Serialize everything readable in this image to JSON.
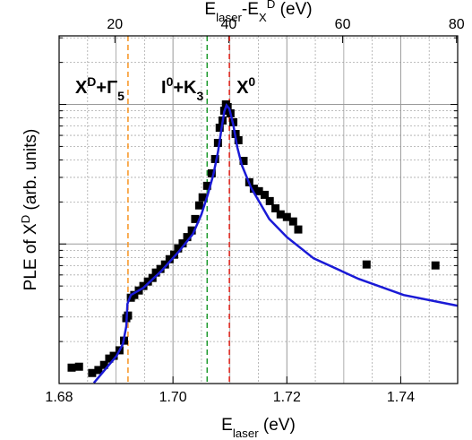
{
  "chart_data": {
    "type": "scatter",
    "xlabel": [
      {
        "base": "E",
        "sub": "laser"
      },
      {
        "base": " (eV)"
      }
    ],
    "x2label": [
      {
        "base": "E",
        "sub": "laser"
      },
      {
        "base": "-E",
        "sub": "X"
      },
      {
        "sup": "D"
      },
      {
        "base": " (eV)"
      }
    ],
    "ylabel": [
      {
        "base": "PLE of X",
        "sup": "D"
      },
      {
        "base": " (arb. units)"
      }
    ],
    "xlim": [
      1.68,
      1.75
    ],
    "xticks": [
      1.68,
      1.7,
      1.72,
      1.74
    ],
    "x2lim": [
      10.2,
      80.2
    ],
    "x2ticks": [
      20,
      40,
      60,
      80
    ],
    "ylim": [
      0.01,
      3.1
    ],
    "ygrid": [
      0.01,
      0.1,
      1
    ],
    "log_y": true,
    "grid": true,
    "series": [
      {
        "kind": "scatter",
        "color": "#000000",
        "x": [
          1.6822,
          1.6835,
          1.6858,
          1.6869,
          1.6879,
          1.6888,
          1.6896,
          1.6906,
          1.6914,
          1.6918,
          1.6921,
          1.6926,
          1.6932,
          1.694,
          1.6948,
          1.6956,
          1.6964,
          1.697,
          1.6978,
          1.6986,
          1.6994,
          1.7002,
          1.7009,
          1.7017,
          1.7025,
          1.7033,
          1.7039,
          1.7046,
          1.7052,
          1.706,
          1.7068,
          1.7074,
          1.7079,
          1.7082,
          1.7087,
          1.709,
          1.7093,
          1.7096,
          1.7101,
          1.7106,
          1.711,
          1.7115,
          1.7124,
          1.7134,
          1.7142,
          1.7151,
          1.7161,
          1.717,
          1.718,
          1.7189,
          1.72,
          1.7211,
          1.722,
          1.734,
          1.7461
        ],
        "values": [
          0.013,
          0.0132,
          0.0119,
          0.0125,
          0.0136,
          0.0151,
          0.0158,
          0.0173,
          0.0203,
          0.0294,
          0.0307,
          0.0412,
          0.0431,
          0.0464,
          0.05,
          0.0538,
          0.0571,
          0.0624,
          0.0662,
          0.0713,
          0.0778,
          0.0838,
          0.0929,
          0.101,
          0.112,
          0.125,
          0.151,
          0.189,
          0.216,
          0.261,
          0.321,
          0.406,
          0.53,
          0.681,
          0.767,
          0.902,
          1.0,
          0.957,
          0.863,
          0.745,
          0.614,
          0.554,
          0.394,
          0.277,
          0.249,
          0.239,
          0.225,
          0.203,
          0.18,
          0.163,
          0.156,
          0.145,
          0.127,
          0.0713,
          0.0702
        ]
      },
      {
        "kind": "line",
        "color": "#1a1ad6",
        "x": [
          1.6861,
          1.6885,
          1.6901,
          1.6912,
          1.6918,
          1.692,
          1.6926,
          1.6948,
          1.698,
          1.7011,
          1.7035,
          1.705,
          1.7061,
          1.7071,
          1.7079,
          1.7085,
          1.709,
          1.7094,
          1.7099,
          1.7106,
          1.7113,
          1.7121,
          1.7137,
          1.7169,
          1.72,
          1.7247,
          1.7326,
          1.7405,
          1.75
        ],
        "values": [
          0.0101,
          0.0132,
          0.0158,
          0.0192,
          0.0257,
          0.0372,
          0.0431,
          0.0485,
          0.0643,
          0.0889,
          0.118,
          0.163,
          0.225,
          0.316,
          0.457,
          0.662,
          0.889,
          0.986,
          0.929,
          0.713,
          0.492,
          0.366,
          0.254,
          0.151,
          0.112,
          0.0789,
          0.0562,
          0.0431,
          0.0361
        ]
      }
    ],
    "annotations": [
      {
        "x": 1.6921,
        "color": "#f7931e",
        "parts": [
          {
            "base": "X",
            "sup": "D"
          },
          {
            "base": "+Γ",
            "sub": "5"
          }
        ]
      },
      {
        "x": 1.706,
        "color": "#1f9a2e",
        "parts": [
          {
            "base": "I",
            "sup": "0"
          },
          {
            "base": "+K",
            "sub": "3"
          }
        ]
      },
      {
        "x": 1.7099,
        "color": "#e8261e",
        "parts": [
          {
            "base": "X",
            "sup": "0"
          }
        ]
      }
    ]
  }
}
